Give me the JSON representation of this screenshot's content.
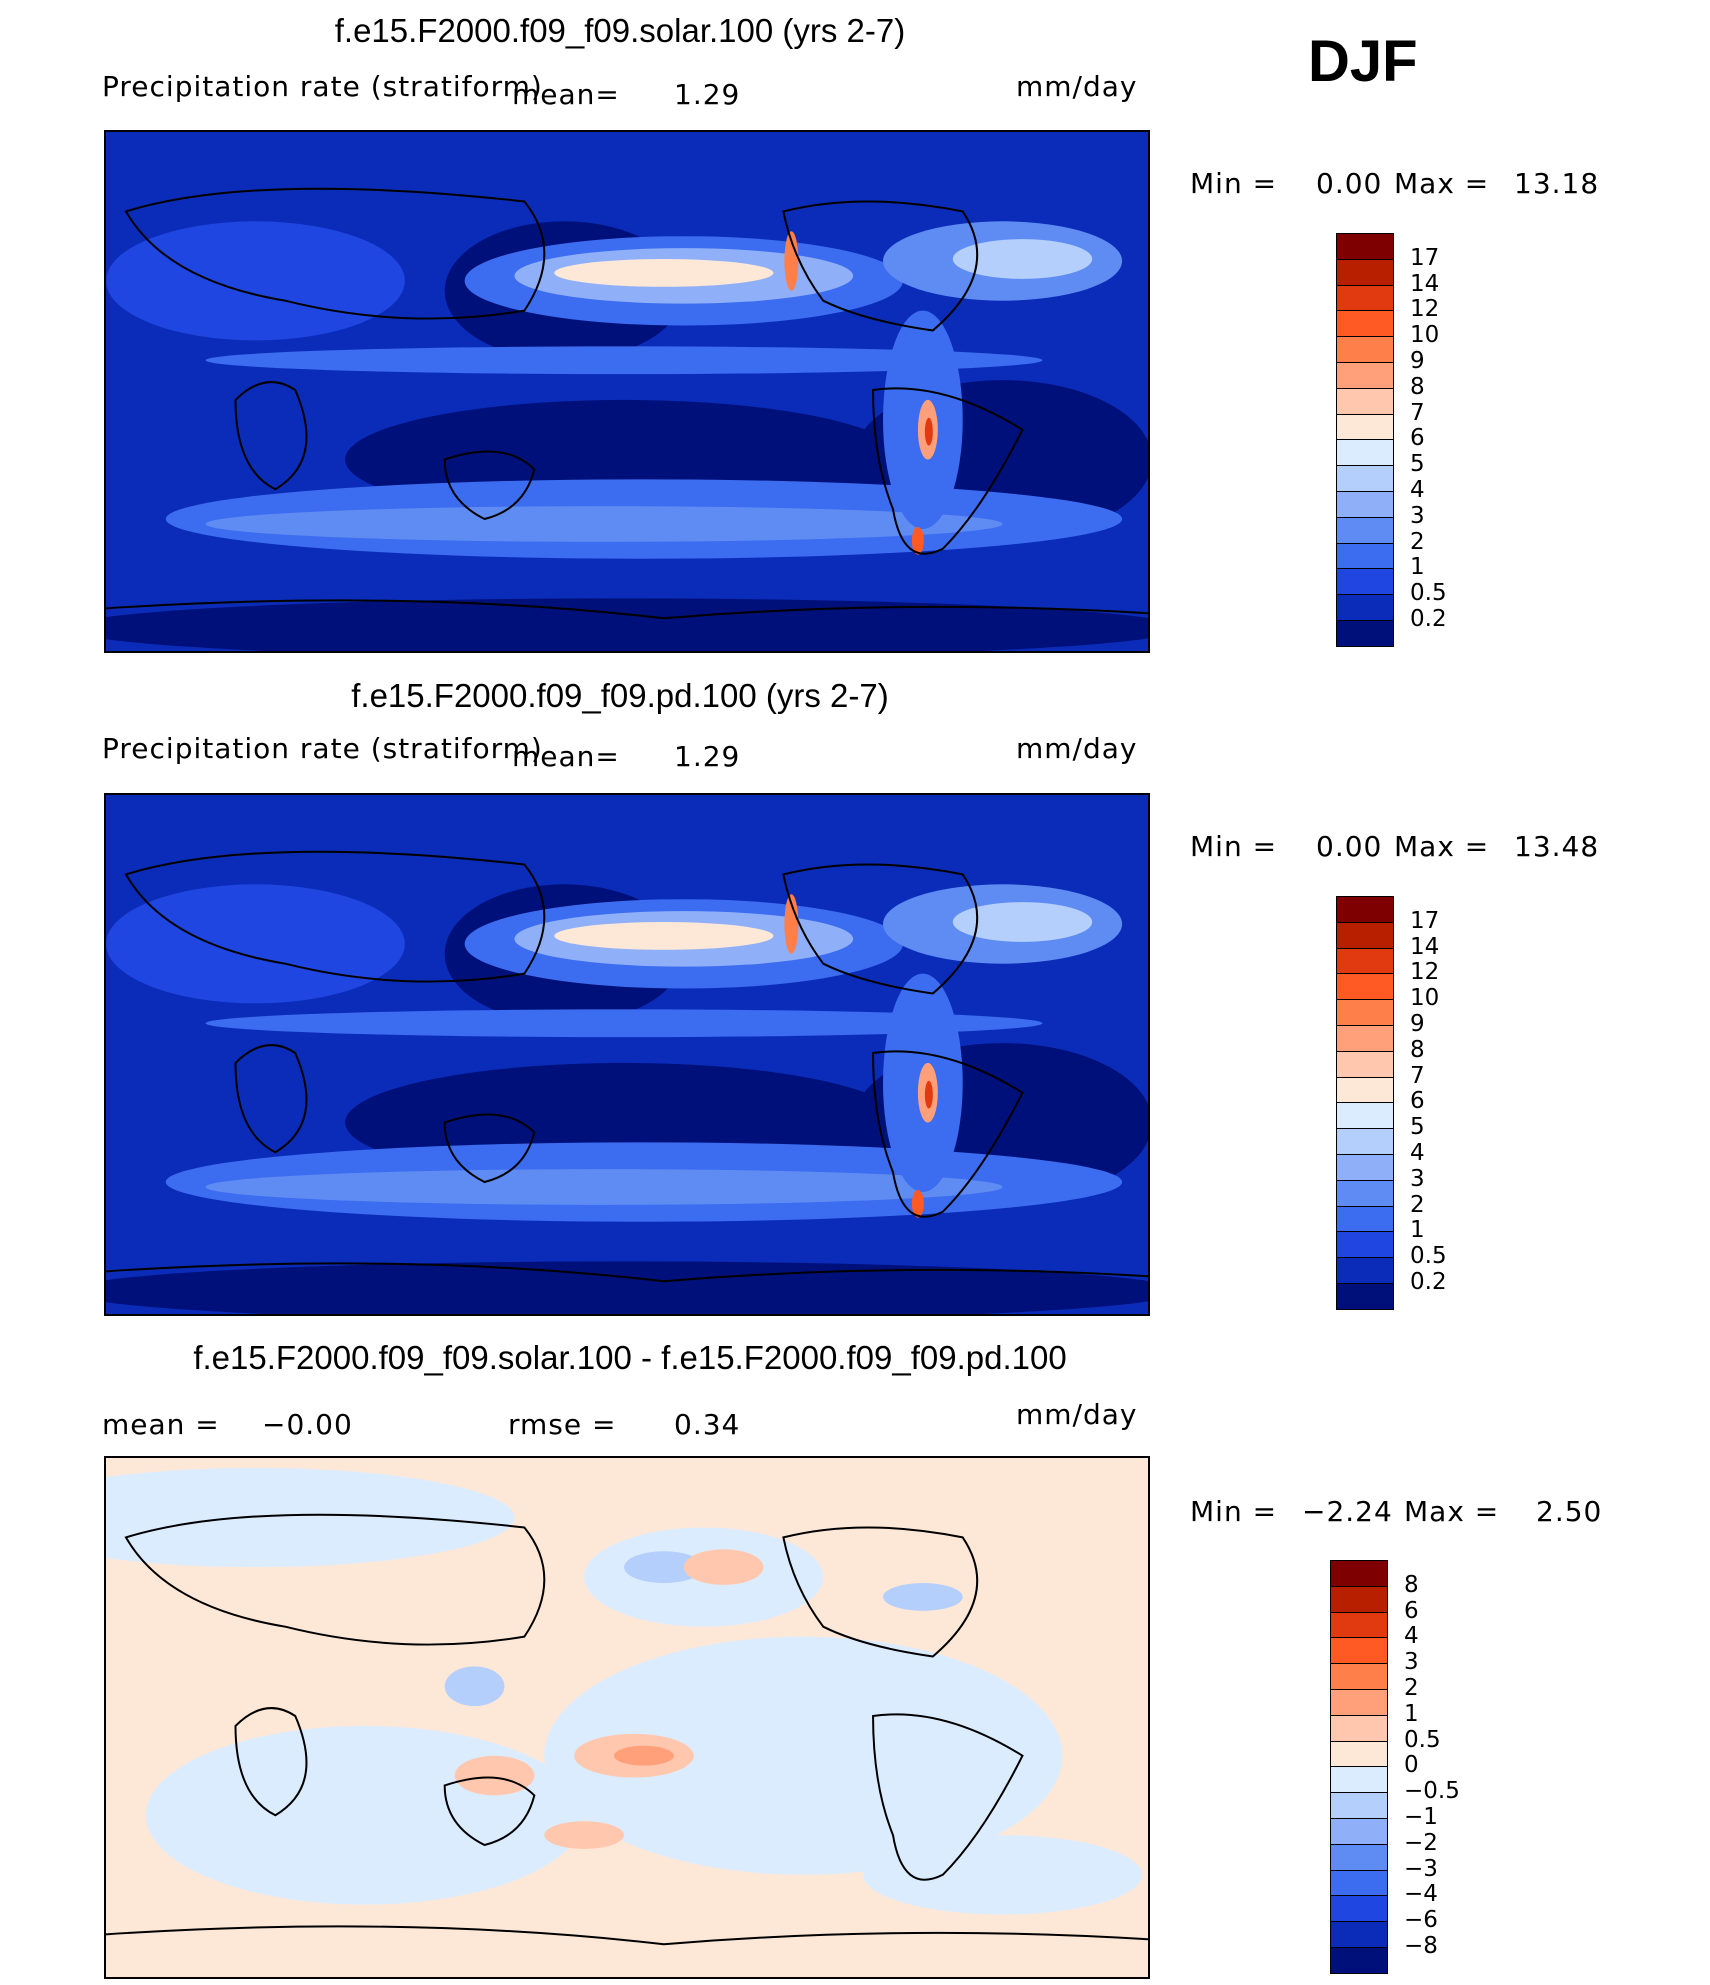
{
  "season": "DJF",
  "panels": [
    {
      "title": "f.e15.F2000.f09_f09.solar.100 (yrs 2-7)",
      "var_label": "Precipitation rate (stratiform)",
      "mean_label": "mean=",
      "mean_value": "1.29",
      "units": "mm/day",
      "min_label": "Min =",
      "min_value": "0.00",
      "max_label": "Max =",
      "max_value": "13.18",
      "colorbar": {
        "levels": [
          "17",
          "14",
          "12",
          "10",
          "9",
          "8",
          "7",
          "6",
          "5",
          "4",
          "3",
          "2",
          "1",
          "0.5",
          "0.2"
        ],
        "colors": [
          "#7f0000",
          "#b81e00",
          "#e23a10",
          "#ff5a24",
          "#ff7f4a",
          "#ffa07a",
          "#ffc8ae",
          "#fde8d8",
          "#dcecff",
          "#b5cffc",
          "#8fb0f8",
          "#5f8cf2",
          "#3c6cf0",
          "#1f46e0",
          "#0b2cb8",
          "#00107a"
        ]
      }
    },
    {
      "title": "f.e15.F2000.f09_f09.pd.100 (yrs 2-7)",
      "var_label": "Precipitation rate (stratiform)",
      "mean_label": "mean=",
      "mean_value": "1.29",
      "units": "mm/day",
      "min_label": "Min =",
      "min_value": "0.00",
      "max_label": "Max =",
      "max_value": "13.48",
      "colorbar": {
        "levels": [
          "17",
          "14",
          "12",
          "10",
          "9",
          "8",
          "7",
          "6",
          "5",
          "4",
          "3",
          "2",
          "1",
          "0.5",
          "0.2"
        ],
        "colors": [
          "#7f0000",
          "#b81e00",
          "#e23a10",
          "#ff5a24",
          "#ff7f4a",
          "#ffa07a",
          "#ffc8ae",
          "#fde8d8",
          "#dcecff",
          "#b5cffc",
          "#8fb0f8",
          "#5f8cf2",
          "#3c6cf0",
          "#1f46e0",
          "#0b2cb8",
          "#00107a"
        ]
      }
    },
    {
      "title": "f.e15.F2000.f09_f09.solar.100 - f.e15.F2000.f09_f09.pd.100",
      "mean_label": "mean =",
      "mean_value": "−0.00",
      "rmse_label": "rmse =",
      "rmse_value": "0.34",
      "units": "mm/day",
      "min_label": "Min =",
      "min_value": "−2.24",
      "max_label": "Max =",
      "max_value": "2.50",
      "colorbar": {
        "levels": [
          "8",
          "6",
          "4",
          "3",
          "2",
          "1",
          "0.5",
          "0",
          "−0.5",
          "−1",
          "−2",
          "−3",
          "−4",
          "−6",
          "−8"
        ],
        "colors": [
          "#7f0000",
          "#b81e00",
          "#e23a10",
          "#ff5a24",
          "#ff7f4a",
          "#ffa07a",
          "#ffc8ae",
          "#fde8d8",
          "#dcecff",
          "#b5cffc",
          "#8fb0f8",
          "#5f8cf2",
          "#3c6cf0",
          "#1f46e0",
          "#0b2cb8",
          "#00107a"
        ]
      }
    }
  ]
}
